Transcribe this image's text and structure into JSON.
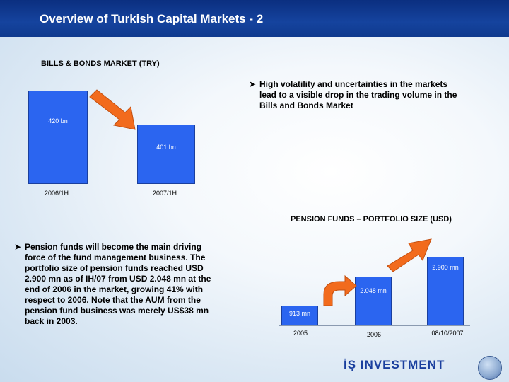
{
  "header": {
    "title": "Overview of Turkish Capital Markets - 2"
  },
  "bonds": {
    "title": "BILLS & BONDS MARKET (TRY)",
    "bullet": [
      "High volatility and uncertainties in the markets",
      "lead to a visible drop in the trading volume in the",
      "Bills and Bonds Market"
    ]
  },
  "pension": {
    "title": "PENSION FUNDS – PORTFOLIO SIZE (USD)",
    "bullet": [
      "Pension  funds will become the main driving",
      "force of the fund management business. The",
      "portfolio size of pension funds reached USD",
      "2.900 mn as of IH/07 from USD 2.048 mn at the",
      "end of 2006 in the market, growing 41% with",
      "respect to 2006. Note that the AUM from the",
      "pension fund business was merely US$38 mn",
      "back in 2003."
    ]
  },
  "chart_data": [
    {
      "type": "bar",
      "title": "BILLS & BONDS MARKET (TRY)",
      "categories": [
        "2006/1H",
        "2007/1H"
      ],
      "values": [
        420,
        401
      ],
      "data_labels": [
        "420 bn",
        "401 bn"
      ],
      "ylim": [
        0,
        420
      ]
    },
    {
      "type": "bar",
      "title": "PENSION FUNDS – PORTFOLIO SIZE (USD)",
      "categories": [
        "2005",
        "2006",
        "08/10/2007"
      ],
      "values": [
        913,
        2048,
        2900
      ],
      "data_labels": [
        "913 mn",
        "2.048 mn",
        "2.900 mn"
      ],
      "ylim": [
        0,
        2900
      ]
    }
  ],
  "footer": {
    "logo": "İŞ INVESTMENT"
  },
  "colors": {
    "header": "#15439e",
    "bar": "#2b65f0",
    "arrow": "#f26b1d"
  },
  "icons": {
    "bullet": "arrow-bullet-icon",
    "trend": "orange-arrow-icon"
  }
}
